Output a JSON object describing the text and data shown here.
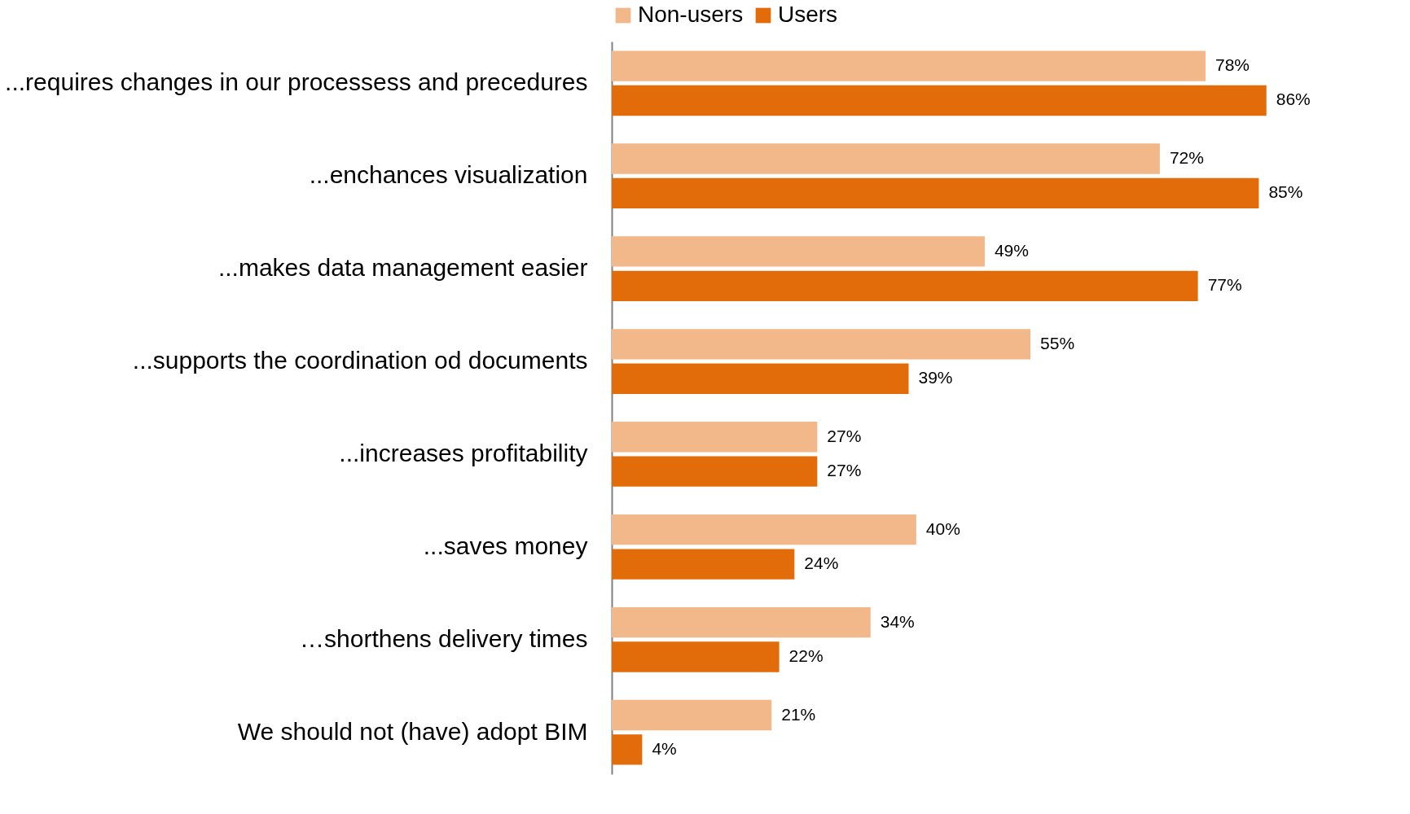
{
  "chart_data": {
    "type": "bar",
    "orientation": "horizontal",
    "legend": "top",
    "categories": [
      "...requires changes in our processess and precedures",
      "...enchances visualization",
      "...makes data management easier",
      "...supports the coordination od documents",
      "...increases profitability",
      "...saves money",
      "…shorthens delivery times",
      "We should not (have) adopt BIM"
    ],
    "series": [
      {
        "name": "Non-users",
        "color": "#f2b88a",
        "values": [
          78,
          72,
          49,
          55,
          27,
          40,
          34,
          21
        ],
        "value_labels": [
          "78%",
          "72%",
          "49%",
          "55%",
          "27%",
          "40%",
          "34%",
          "21%"
        ]
      },
      {
        "name": "Users",
        "color": "#e36c0a",
        "values": [
          86,
          85,
          77,
          39,
          27,
          24,
          22,
          4
        ],
        "value_labels": [
          "86%",
          "85%",
          "77%",
          "39%",
          "27%",
          "24%",
          "22%",
          "4%"
        ]
      }
    ]
  }
}
